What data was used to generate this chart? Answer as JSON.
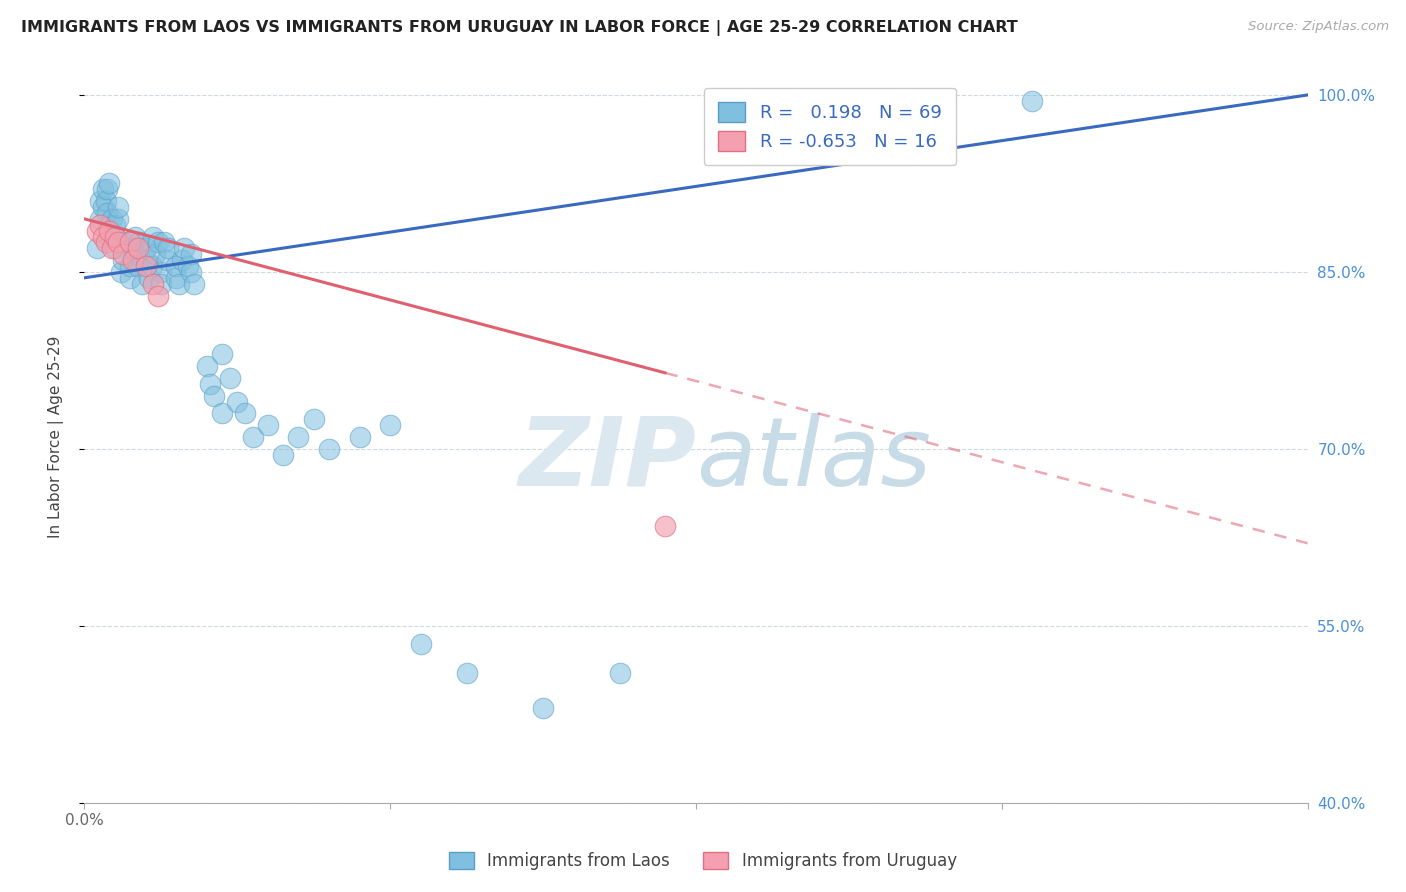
{
  "title": "IMMIGRANTS FROM LAOS VS IMMIGRANTS FROM URUGUAY IN LABOR FORCE | AGE 25-29 CORRELATION CHART",
  "source": "Source: ZipAtlas.com",
  "ylabel": "In Labor Force | Age 25-29",
  "xlabel_laos": "Immigrants from Laos",
  "xlabel_uruguay": "Immigrants from Uruguay",
  "xlim": [
    0.0,
    0.08
  ],
  "ylim": [
    0.4,
    1.02
  ],
  "ytick_vals": [
    0.4,
    0.55,
    0.7,
    0.85,
    1.0
  ],
  "ytick_labels": [
    "40.0%",
    "55.0%",
    "70.0%",
    "85.0%",
    "100.0%"
  ],
  "xtick_vals": [
    0.0,
    0.02,
    0.04,
    0.06,
    0.08
  ],
  "xtick_labels": [
    "0.0%",
    "",
    "",
    "",
    ""
  ],
  "laos_color": "#7fbfdf",
  "laos_edge": "#5a9ec6",
  "uruguay_color": "#f4a0b0",
  "uruguay_edge": "#e07080",
  "laos_R": 0.198,
  "laos_N": 69,
  "uruguay_R": -0.653,
  "uruguay_N": 16,
  "blue_line_color": "#3a6abf",
  "pink_line_color": "#e06070",
  "watermark_color": "#e8eef5",
  "grid_color": "#d0d8e0",
  "title_color": "#222222",
  "source_color": "#aaaaaa",
  "tick_color": "#666666",
  "right_tick_color": "#4a90d9",
  "ylabel_color": "#444444",
  "legend_text_color": "#3a6abf",
  "laos_x": [
    0.0008,
    0.001,
    0.001,
    0.0012,
    0.0012,
    0.0014,
    0.0015,
    0.0015,
    0.0016,
    0.0016,
    0.0018,
    0.002,
    0.002,
    0.002,
    0.0022,
    0.0022,
    0.0024,
    0.0025,
    0.0025,
    0.003,
    0.003,
    0.0032,
    0.0033,
    0.0034,
    0.0035,
    0.0036,
    0.0038,
    0.004,
    0.004,
    0.0042,
    0.0044,
    0.0045,
    0.0046,
    0.0048,
    0.005,
    0.005,
    0.0052,
    0.0054,
    0.0055,
    0.006,
    0.006,
    0.0062,
    0.0064,
    0.0065,
    0.0068,
    0.007,
    0.007,
    0.0072,
    0.008,
    0.0082,
    0.0085,
    0.009,
    0.009,
    0.0095,
    0.01,
    0.0105,
    0.011,
    0.012,
    0.013,
    0.014,
    0.015,
    0.016,
    0.018,
    0.02,
    0.022,
    0.025,
    0.03,
    0.035,
    0.062
  ],
  "laos_y": [
    0.87,
    0.91,
    0.895,
    0.92,
    0.905,
    0.91,
    0.9,
    0.92,
    0.88,
    0.925,
    0.895,
    0.88,
    0.89,
    0.87,
    0.895,
    0.905,
    0.85,
    0.875,
    0.86,
    0.845,
    0.855,
    0.87,
    0.88,
    0.865,
    0.855,
    0.875,
    0.84,
    0.86,
    0.87,
    0.845,
    0.855,
    0.88,
    0.865,
    0.875,
    0.85,
    0.84,
    0.875,
    0.86,
    0.87,
    0.845,
    0.855,
    0.84,
    0.86,
    0.87,
    0.855,
    0.865,
    0.85,
    0.84,
    0.77,
    0.755,
    0.745,
    0.78,
    0.73,
    0.76,
    0.74,
    0.73,
    0.71,
    0.72,
    0.695,
    0.71,
    0.725,
    0.7,
    0.71,
    0.72,
    0.535,
    0.51,
    0.48,
    0.51,
    0.995
  ],
  "uruguay_x": [
    0.0008,
    0.001,
    0.0012,
    0.0014,
    0.0016,
    0.0018,
    0.002,
    0.0022,
    0.0025,
    0.003,
    0.0032,
    0.0035,
    0.004,
    0.0045,
    0.0048,
    0.038
  ],
  "uruguay_y": [
    0.885,
    0.89,
    0.88,
    0.875,
    0.885,
    0.87,
    0.88,
    0.875,
    0.865,
    0.875,
    0.86,
    0.87,
    0.855,
    0.84,
    0.83,
    0.635
  ],
  "laos_line_x0": 0.0,
  "laos_line_x1": 0.08,
  "laos_line_y0": 0.845,
  "laos_line_y1": 1.0,
  "uru_line_x0": 0.0,
  "uru_line_y0": 0.895,
  "uru_line_x_solid_end": 0.038,
  "uru_line_x_dashed_end": 0.08,
  "uru_line_y1": 0.62
}
